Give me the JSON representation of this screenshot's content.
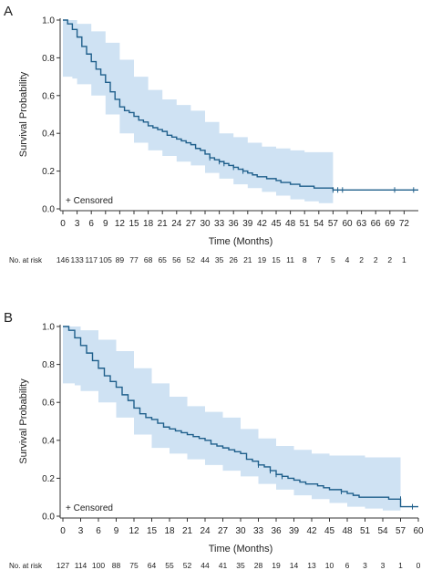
{
  "chart_data": [
    {
      "panel": "A",
      "type": "line",
      "xlabel": "Time (Months)",
      "ylabel": "Survival Probability",
      "xlim": [
        0,
        75
      ],
      "ylim": [
        0,
        1.0
      ],
      "x_ticks": [
        0,
        3,
        6,
        9,
        12,
        15,
        18,
        21,
        24,
        27,
        30,
        33,
        36,
        39,
        42,
        45,
        48,
        51,
        54,
        57,
        60,
        63,
        66,
        69,
        72
      ],
      "y_ticks": [
        "0.0",
        "0.2",
        "0.4",
        "0.6",
        "0.8",
        "1.0"
      ],
      "legend": "+ Censored",
      "legend_placement": "bottom-left",
      "risk_label": "No. at risk",
      "at_risk": [
        "146",
        "133",
        "117",
        "105",
        "89",
        "77",
        "68",
        "65",
        "56",
        "52",
        "44",
        "35",
        "26",
        "21",
        "19",
        "15",
        "11",
        "8",
        "7",
        "5",
        "4",
        "2",
        "2",
        "2",
        "1"
      ],
      "series": [
        {
          "kind": "survival",
          "x": [
            0,
            1,
            2,
            3,
            4,
            5,
            6,
            7,
            8,
            9,
            10,
            11,
            12,
            13,
            14,
            15,
            16,
            17,
            18,
            19,
            20,
            21,
            22,
            23,
            24,
            25,
            26,
            27,
            28,
            29,
            30,
            31,
            32,
            33,
            34,
            35,
            36,
            37,
            38,
            39,
            40,
            41,
            42,
            43,
            44,
            45,
            46,
            47,
            48,
            49,
            50,
            51,
            52,
            53,
            54,
            55,
            56,
            57,
            75
          ],
          "y": [
            1.0,
            0.98,
            0.95,
            0.91,
            0.86,
            0.82,
            0.78,
            0.74,
            0.71,
            0.67,
            0.62,
            0.58,
            0.54,
            0.52,
            0.51,
            0.49,
            0.47,
            0.46,
            0.44,
            0.43,
            0.42,
            0.41,
            0.39,
            0.38,
            0.37,
            0.36,
            0.35,
            0.34,
            0.32,
            0.31,
            0.29,
            0.27,
            0.26,
            0.25,
            0.24,
            0.23,
            0.22,
            0.21,
            0.2,
            0.19,
            0.18,
            0.17,
            0.17,
            0.16,
            0.16,
            0.15,
            0.14,
            0.14,
            0.13,
            0.13,
            0.12,
            0.12,
            0.12,
            0.11,
            0.11,
            0.11,
            0.11,
            0.1,
            0.1
          ]
        },
        {
          "kind": "ci",
          "x": [
            0,
            1,
            2,
            3,
            6,
            9,
            12,
            15,
            18,
            21,
            24,
            27,
            30,
            33,
            36,
            39,
            42,
            45,
            48,
            51,
            54,
            57
          ],
          "lower": [
            0.7,
            0.7,
            0.69,
            0.66,
            0.6,
            0.5,
            0.4,
            0.35,
            0.31,
            0.28,
            0.25,
            0.23,
            0.19,
            0.16,
            0.13,
            0.11,
            0.09,
            0.07,
            0.05,
            0.04,
            0.03,
            0.02
          ],
          "upper": [
            1.0,
            1.0,
            1.0,
            0.98,
            0.94,
            0.88,
            0.79,
            0.7,
            0.63,
            0.58,
            0.55,
            0.52,
            0.46,
            0.4,
            0.38,
            0.35,
            0.33,
            0.32,
            0.31,
            0.3,
            0.3,
            0.3
          ]
        },
        {
          "kind": "censored",
          "x": [
            31,
            33,
            34,
            36,
            38,
            57,
            58,
            59,
            70,
            74
          ],
          "y": [
            0.27,
            0.25,
            0.24,
            0.22,
            0.2,
            0.1,
            0.1,
            0.1,
            0.1,
            0.1
          ]
        }
      ]
    },
    {
      "panel": "B",
      "type": "line",
      "xlabel": "Time (Months)",
      "ylabel": "Survival Probability",
      "xlim": [
        0,
        60
      ],
      "ylim": [
        0,
        1.0
      ],
      "x_ticks": [
        0,
        3,
        6,
        9,
        12,
        15,
        18,
        21,
        24,
        27,
        30,
        33,
        36,
        39,
        42,
        45,
        48,
        51,
        54,
        57,
        60
      ],
      "y_ticks": [
        "0.0",
        "0.2",
        "0.4",
        "0.6",
        "0.8",
        "1.0"
      ],
      "legend": "+ Censored",
      "legend_placement": "bottom-left",
      "risk_label": "No. at risk",
      "at_risk": [
        "127",
        "114",
        "100",
        "88",
        "75",
        "64",
        "55",
        "52",
        "44",
        "41",
        "35",
        "28",
        "19",
        "14",
        "13",
        "10",
        "6",
        "3",
        "3",
        "1",
        "0"
      ],
      "series": [
        {
          "kind": "survival",
          "x": [
            0,
            1,
            2,
            3,
            4,
            5,
            6,
            7,
            8,
            9,
            10,
            11,
            12,
            13,
            14,
            15,
            16,
            17,
            18,
            19,
            20,
            21,
            22,
            23,
            24,
            25,
            26,
            27,
            28,
            29,
            30,
            31,
            32,
            33,
            34,
            35,
            36,
            37,
            38,
            39,
            40,
            41,
            42,
            43,
            44,
            45,
            46,
            47,
            48,
            49,
            50,
            51,
            52,
            53,
            54,
            55,
            56,
            57,
            60
          ],
          "y": [
            1.0,
            0.98,
            0.94,
            0.9,
            0.86,
            0.82,
            0.78,
            0.74,
            0.71,
            0.68,
            0.64,
            0.61,
            0.57,
            0.54,
            0.52,
            0.51,
            0.49,
            0.47,
            0.46,
            0.45,
            0.44,
            0.43,
            0.42,
            0.41,
            0.4,
            0.38,
            0.37,
            0.36,
            0.35,
            0.34,
            0.33,
            0.3,
            0.29,
            0.27,
            0.26,
            0.24,
            0.22,
            0.21,
            0.2,
            0.19,
            0.18,
            0.17,
            0.17,
            0.16,
            0.15,
            0.14,
            0.14,
            0.13,
            0.12,
            0.11,
            0.1,
            0.1,
            0.1,
            0.1,
            0.1,
            0.09,
            0.09,
            0.05,
            0.05
          ]
        },
        {
          "kind": "ci",
          "x": [
            0,
            1,
            2,
            3,
            6,
            9,
            12,
            15,
            18,
            21,
            24,
            27,
            30,
            33,
            36,
            39,
            42,
            45,
            48,
            51,
            54,
            57
          ],
          "lower": [
            0.7,
            0.7,
            0.69,
            0.66,
            0.6,
            0.52,
            0.43,
            0.36,
            0.33,
            0.3,
            0.27,
            0.24,
            0.21,
            0.17,
            0.14,
            0.11,
            0.09,
            0.07,
            0.05,
            0.04,
            0.03,
            0.02
          ],
          "upper": [
            1.0,
            1.0,
            1.0,
            0.98,
            0.93,
            0.87,
            0.78,
            0.7,
            0.63,
            0.58,
            0.55,
            0.52,
            0.46,
            0.41,
            0.37,
            0.35,
            0.33,
            0.32,
            0.32,
            0.31,
            0.31,
            0.31
          ]
        },
        {
          "kind": "censored",
          "x": [
            33,
            35,
            36,
            37,
            47,
            57,
            59
          ],
          "y": [
            0.27,
            0.24,
            0.22,
            0.21,
            0.13,
            0.09,
            0.05
          ]
        }
      ]
    }
  ],
  "style": {
    "curve_color": "#1f5f8b",
    "ci_color": "#cfe2f3"
  }
}
